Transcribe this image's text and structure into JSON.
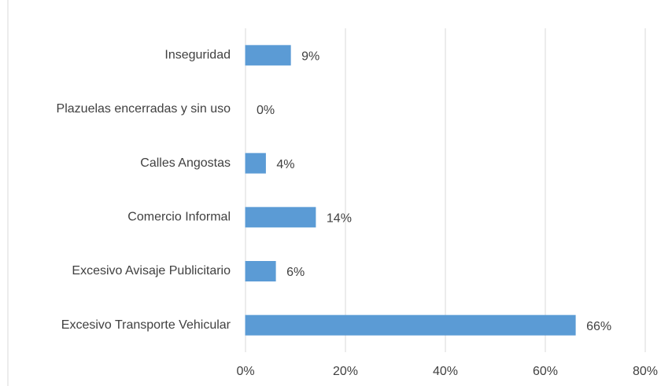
{
  "chart_data": {
    "type": "bar",
    "orientation": "horizontal",
    "categories": [
      "Inseguridad",
      "Plazuelas encerradas y sin uso",
      "Calles Angostas",
      "Comercio Informal",
      "Excesivo Avisaje Publicitario",
      "Excesivo Transporte Vehicular"
    ],
    "values": [
      9,
      0,
      4,
      14,
      6,
      66
    ],
    "value_labels": [
      "9%",
      "0%",
      "4%",
      "14%",
      "6%",
      "66%"
    ],
    "color": "#5b9bd5",
    "xlim": [
      0,
      80
    ],
    "xticks": [
      {
        "value": 0,
        "label": "0%"
      },
      {
        "value": 20,
        "label": "20%"
      },
      {
        "value": 40,
        "label": "40%"
      },
      {
        "value": 60,
        "label": "60%"
      },
      {
        "value": 80,
        "label": "80%"
      }
    ],
    "grid": true
  }
}
